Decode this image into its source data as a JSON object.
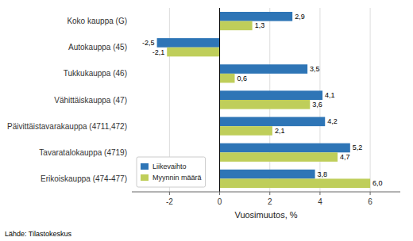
{
  "chart_data": {
    "type": "bar",
    "orientation": "horizontal",
    "categories": [
      "Erikoiskauppa (474-477)",
      "Tavaratalokauppa (4719)",
      "Päivittäistavarakauppa (4711,472)",
      "Vähittäiskauppa (47)",
      "Tukkukauppa (46)",
      "Autokauppa (45)",
      "Koko kauppa (G)"
    ],
    "series": [
      {
        "name": "Liikevaihto",
        "color": "#2E75B6",
        "values": [
          3.8,
          5.2,
          4.2,
          4.1,
          3.5,
          -2.5,
          2.9
        ],
        "value_labels": [
          "3,8",
          "5,2",
          "4,2",
          "4,1",
          "3,5",
          "-2,5",
          "2,9"
        ]
      },
      {
        "name": "Myynnin määrä",
        "color": "#BFCE5A",
        "values": [
          6.0,
          4.7,
          2.1,
          3.6,
          0.6,
          -2.1,
          1.3
        ],
        "value_labels": [
          "6,0",
          "4,7",
          "2,1",
          "3,6",
          "0,6",
          "-2,1",
          "1,3"
        ]
      }
    ],
    "xlabel": "Vuosimuutos, %",
    "xlim": [
      -3.5,
      7.2
    ],
    "xticks": [
      -2,
      0,
      2,
      4,
      6
    ],
    "grid": true,
    "legend": "lower left",
    "data_labels": true,
    "source": "Lähde: Tilastokeskus"
  }
}
